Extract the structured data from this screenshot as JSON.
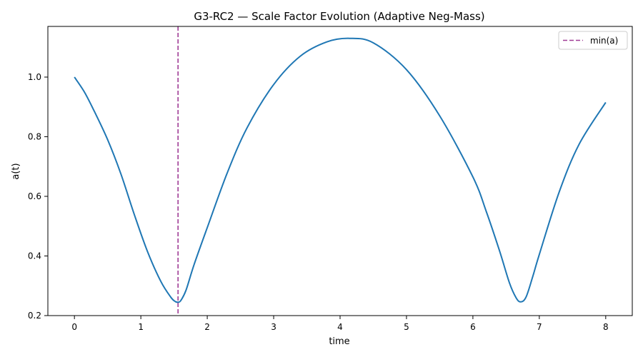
{
  "chart_data": {
    "type": "line",
    "title": "G3-RC2 — Scale Factor Evolution (Adaptive Neg-Mass)",
    "xlabel": "time",
    "ylabel": "a(t)",
    "xlim": [
      -0.4,
      8.4
    ],
    "ylim": [
      0.2,
      1.17
    ],
    "xticks": [
      0,
      1,
      2,
      3,
      4,
      5,
      6,
      7,
      8
    ],
    "yticks": [
      0.2,
      0.4,
      0.6,
      0.8,
      1.0
    ],
    "grid": false,
    "legend": {
      "placement": "top-right",
      "entries": [
        "min(a)"
      ]
    },
    "series": [
      {
        "color": "#1f77b4",
        "x": [
          0.0,
          0.15,
          0.3,
          0.5,
          0.7,
          0.9,
          1.1,
          1.3,
          1.45,
          1.52,
          1.56,
          1.6,
          1.68,
          1.8,
          2.0,
          2.3,
          2.6,
          3.0,
          3.4,
          3.8,
          4.14,
          4.5,
          5.0,
          5.5,
          6.0,
          6.2,
          6.4,
          6.55,
          6.65,
          6.72,
          6.8,
          6.9,
          7.0,
          7.3,
          7.6,
          8.0
        ],
        "y": [
          1.0,
          0.95,
          0.885,
          0.79,
          0.675,
          0.54,
          0.415,
          0.315,
          0.262,
          0.247,
          0.245,
          0.25,
          0.285,
          0.37,
          0.495,
          0.678,
          0.83,
          0.975,
          1.07,
          1.118,
          1.13,
          1.115,
          1.025,
          0.87,
          0.665,
          0.55,
          0.418,
          0.31,
          0.26,
          0.246,
          0.262,
          0.33,
          0.405,
          0.615,
          0.775,
          0.915
        ]
      }
    ],
    "vlines": [
      {
        "x": 1.56,
        "label": "min(a)",
        "color": "#a03c96",
        "style": "dashed"
      }
    ]
  }
}
